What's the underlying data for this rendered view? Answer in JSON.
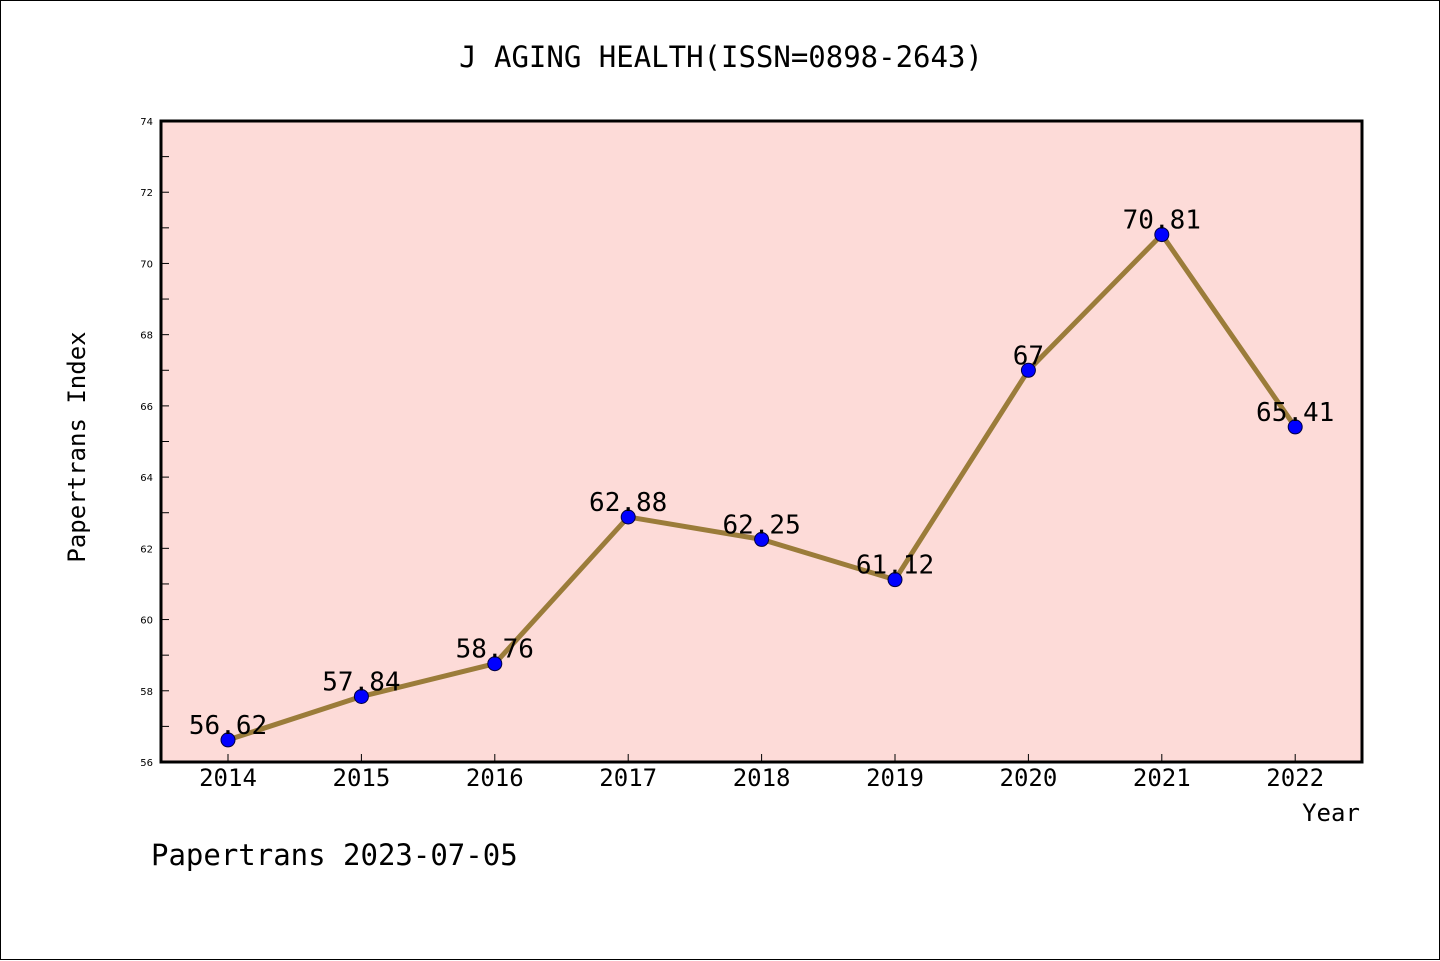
{
  "chart_data": {
    "type": "line",
    "title": "J AGING HEALTH(ISSN=0898-2643)",
    "xlabel": "Year",
    "ylabel": "Papertrans Index",
    "categories": [
      "2014",
      "2015",
      "2016",
      "2017",
      "2018",
      "2019",
      "2020",
      "2021",
      "2022"
    ],
    "values": [
      56.62,
      57.84,
      58.76,
      62.88,
      62.25,
      61.12,
      67,
      70.81,
      65.41
    ],
    "data_labels": [
      "56.62",
      "57.84",
      "58.76",
      "62.88",
      "62.25",
      "61.12",
      "67",
      "70.81",
      "65.41"
    ],
    "ylim": [
      56,
      74
    ],
    "yticks": [
      "56",
      "58",
      "60",
      "62",
      "64",
      "66",
      "68",
      "70",
      "72",
      "74"
    ],
    "grid": false,
    "colors": {
      "plot_background": "#fddbd8",
      "line": "#9b7c3a",
      "marker": "#0000ff"
    }
  },
  "footer": {
    "text": "Papertrans 2023-07-05"
  }
}
